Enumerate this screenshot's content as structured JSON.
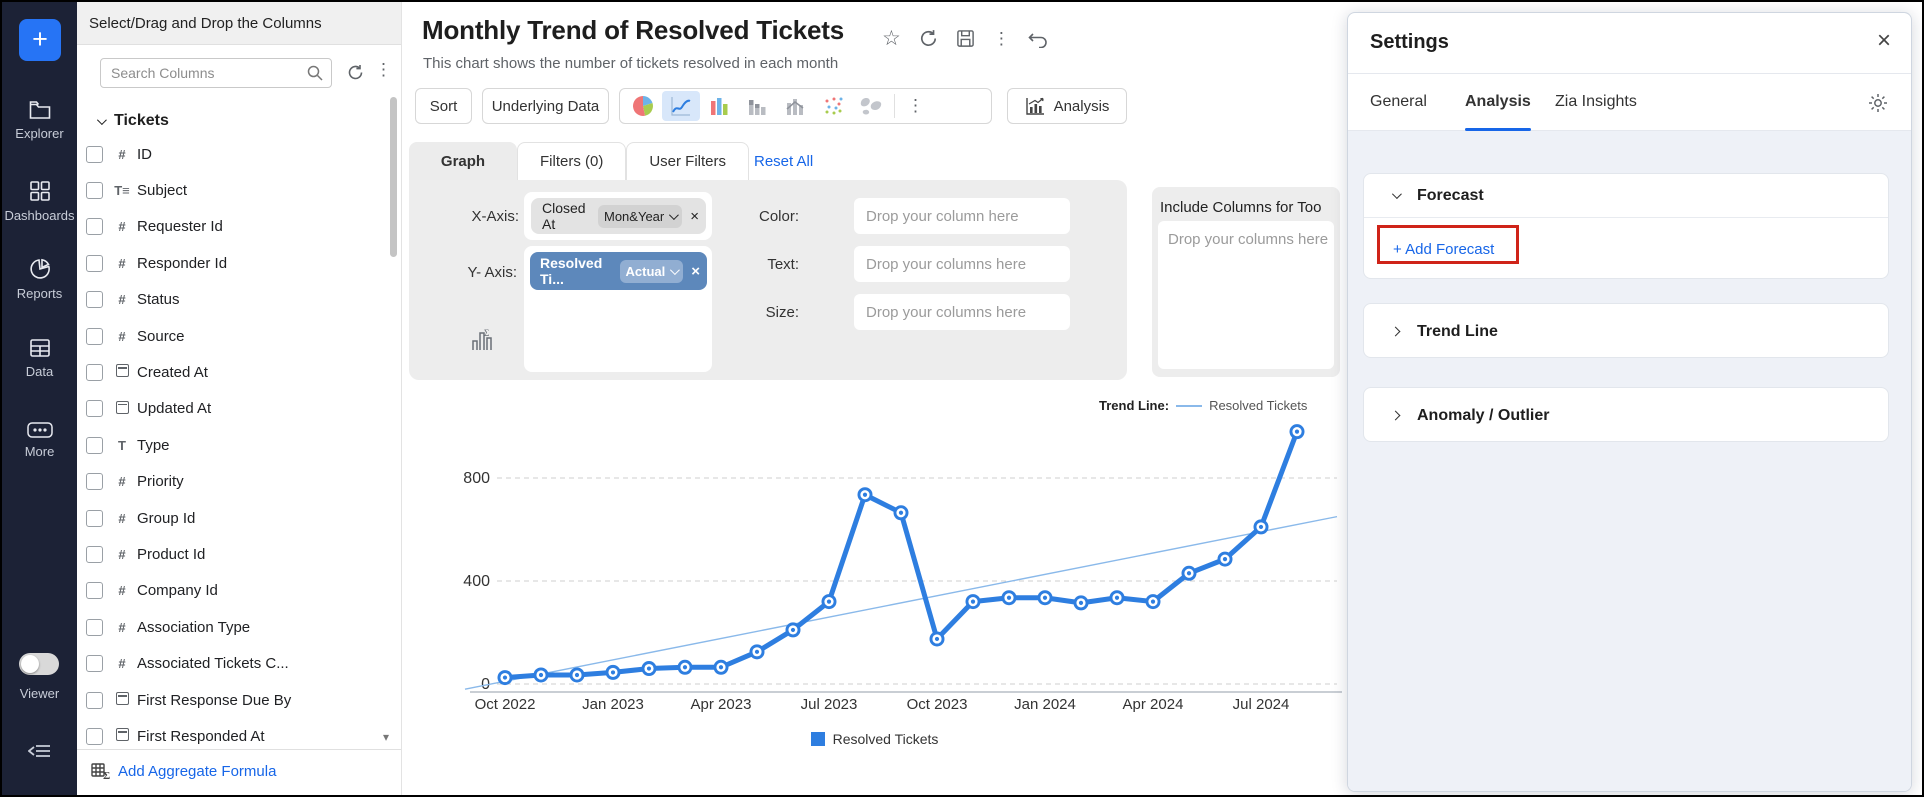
{
  "sidebar": {
    "plus_label": "+",
    "items": [
      {
        "icon": "folder-icon",
        "label": "Explorer"
      },
      {
        "icon": "dashboards-icon",
        "label": "Dashboards"
      },
      {
        "icon": "reports-icon",
        "label": "Reports"
      },
      {
        "icon": "data-icon",
        "label": "Data"
      },
      {
        "icon": "more-icon",
        "label": "More"
      }
    ],
    "viewer_label": "Viewer"
  },
  "columns_panel": {
    "header": "Select/Drag and Drop the Columns",
    "search_placeholder": "Search Columns",
    "group": "Tickets",
    "items": [
      {
        "type": "number",
        "label": "ID"
      },
      {
        "type": "text-multi",
        "label": "Subject"
      },
      {
        "type": "number",
        "label": "Requester Id"
      },
      {
        "type": "number",
        "label": "Responder Id"
      },
      {
        "type": "number",
        "label": "Status"
      },
      {
        "type": "number",
        "label": "Source"
      },
      {
        "type": "date",
        "label": "Created At"
      },
      {
        "type": "date",
        "label": "Updated At"
      },
      {
        "type": "text",
        "label": "Type"
      },
      {
        "type": "number",
        "label": "Priority"
      },
      {
        "type": "number",
        "label": "Group Id"
      },
      {
        "type": "number",
        "label": "Product Id"
      },
      {
        "type": "number",
        "label": "Company Id"
      },
      {
        "type": "number",
        "label": "Association Type"
      },
      {
        "type": "number",
        "label": "Associated Tickets C..."
      },
      {
        "type": "date",
        "label": "First Response Due By"
      },
      {
        "type": "date",
        "label": "First Responded At"
      }
    ],
    "footer_action": "Add Aggregate Formula"
  },
  "main": {
    "title": "Monthly Trend of Resolved Tickets",
    "subtitle": "This chart shows the number of tickets resolved in each month",
    "toolbar": {
      "sort_label": "Sort",
      "underlying_label": "Underlying Data",
      "analysis_label": "Analysis"
    },
    "tabs": {
      "graph": "Graph",
      "filters": "Filters  (0)",
      "user_filters": "User Filters",
      "reset": "Reset All"
    },
    "axis_config": {
      "x_label": "X-Axis:",
      "x_pill": "Closed At",
      "x_subpill": "Mon&Year",
      "y_label": "Y- Axis:",
      "y_pill": "Resolved Ti...",
      "y_subpill": "Actual",
      "color_label": "Color:",
      "color_placeholder": "Drop your column here",
      "text_label": "Text:",
      "text_placeholder": "Drop your columns here",
      "size_label": "Size:",
      "size_placeholder": "Drop your columns here"
    },
    "include_panel": {
      "title": "Include Columns for Too",
      "placeholder": "Drop your columns here"
    }
  },
  "chart_data": {
    "type": "line",
    "title": "Monthly Trend of Resolved Tickets",
    "series": [
      {
        "name": "Resolved Tickets",
        "x": [
          "Oct 2022",
          "Nov 2022",
          "Dec 2022",
          "Jan 2023",
          "Feb 2023",
          "Mar 2023",
          "Apr 2023",
          "May 2023",
          "Jun 2023",
          "Jul 2023",
          "Aug 2023",
          "Sep 2023",
          "Oct 2023",
          "Nov 2023",
          "Dec 2023",
          "Jan 2024",
          "Feb 2024",
          "Mar 2024",
          "Apr 2024",
          "May 2024",
          "Jun 2024",
          "Jul 2024",
          "Aug 2024"
        ],
        "values": [
          25,
          35,
          35,
          45,
          60,
          65,
          65,
          125,
          210,
          320,
          735,
          665,
          175,
          320,
          335,
          335,
          315,
          335,
          320,
          430,
          485,
          610,
          980
        ]
      }
    ],
    "x_tick_labels": [
      "Oct 2022",
      "Jan 2023",
      "Apr 2023",
      "Jul 2023",
      "Oct 2023",
      "Jan 2024",
      "Apr 2024",
      "Jul 2024"
    ],
    "y_ticks": [
      0,
      400,
      800
    ],
    "ylim": [
      0,
      1050
    ],
    "grid": "dashed-horizontal",
    "trend_line": {
      "label": "Trend Line:",
      "series_name": "Resolved Tickets",
      "endpoint_values": [
        -20,
        650
      ]
    },
    "legend": [
      "Resolved Tickets"
    ],
    "legend_position": "bottom-center",
    "colors": {
      "line": "#2e7ee0",
      "trend": "#8ab9ea"
    }
  },
  "settings_panel": {
    "title": "Settings",
    "tabs": [
      {
        "label": "General",
        "active": false
      },
      {
        "label": "Analysis",
        "active": true
      },
      {
        "label": "Zia Insights",
        "active": false
      }
    ],
    "sections": [
      {
        "title": "Forecast",
        "expanded": true,
        "action": "+ Add Forecast",
        "action_highlighted": true
      },
      {
        "title": "Trend Line",
        "expanded": false
      },
      {
        "title": "Anomaly / Outlier",
        "expanded": false
      }
    ]
  }
}
